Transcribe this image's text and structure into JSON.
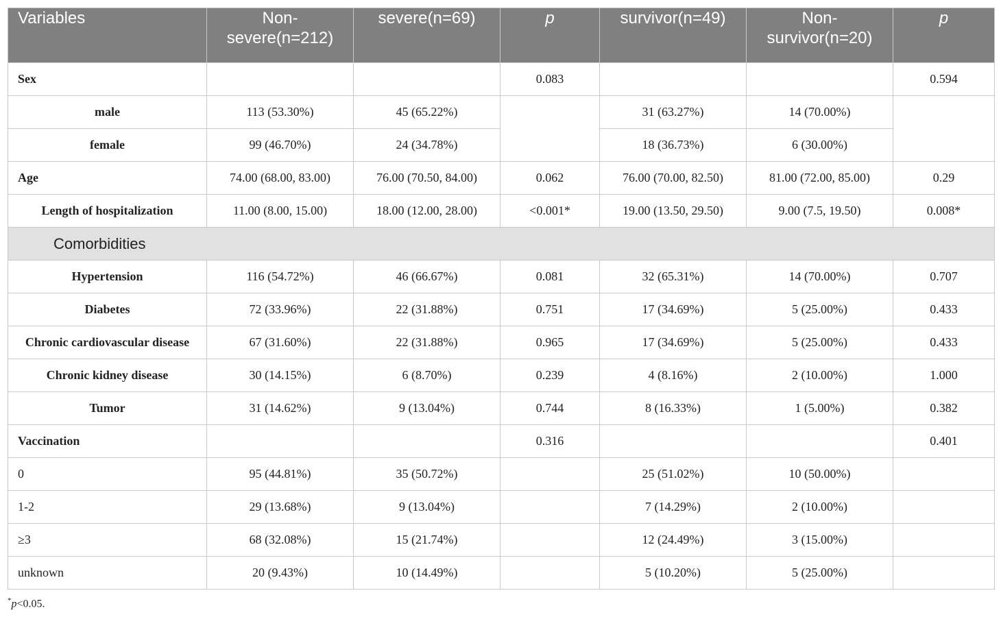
{
  "header": [
    "Variables",
    "Non-\nsevere(n=212)",
    "severe(n=69)",
    "p",
    "survivor(n=49)",
    "Non-\nsurvivor(n=20)",
    "p"
  ],
  "rows": {
    "sex": {
      "label": "Sex",
      "p1": "0.083",
      "p2": "0.594"
    },
    "male": {
      "label": "male",
      "c1": "113 (53.30%)",
      "c2": "45 (65.22%)",
      "c4": "31 (63.27%)",
      "c5": "14 (70.00%)"
    },
    "female": {
      "label": "female",
      "c1": "99 (46.70%)",
      "c2": "24 (34.78%)",
      "c4": "18 (36.73%)",
      "c5": "6 (30.00%)"
    },
    "age": {
      "label": "Age",
      "c1": "74.00 (68.00, 83.00)",
      "c2": "76.00 (70.50, 84.00)",
      "c3": "0.062",
      "c4": "76.00 (70.00, 82.50)",
      "c5": "81.00 (72.00, 85.00)",
      "c6": "0.29"
    },
    "los": {
      "label": "Length of hospitalization",
      "c1": "11.00 (8.00, 15.00)",
      "c2": "18.00 (12.00, 28.00)",
      "c3": "<0.001*",
      "c4": "19.00 (13.50, 29.50)",
      "c5": "9.00 (7.5, 19.50)",
      "c6": "0.008*"
    },
    "comorbidities": {
      "label": "Comorbidities"
    },
    "hypertension": {
      "label": "Hypertension",
      "c1": "116 (54.72%)",
      "c2": "46 (66.67%)",
      "c3": "0.081",
      "c4": "32 (65.31%)",
      "c5": "14 (70.00%)",
      "c6": "0.707"
    },
    "diabetes": {
      "label": "Diabetes",
      "c1": "72 (33.96%)",
      "c2": "22 (31.88%)",
      "c3": "0.751",
      "c4": "17 (34.69%)",
      "c5": "5 (25.00%)",
      "c6": "0.433"
    },
    "ccd": {
      "label": "Chronic cardiovascular disease",
      "c1": "67 (31.60%)",
      "c2": "22 (31.88%)",
      "c3": "0.965",
      "c4": "17 (34.69%)",
      "c5": "5 (25.00%)",
      "c6": "0.433"
    },
    "ckd": {
      "label": "Chronic kidney disease",
      "c1": "30 (14.15%)",
      "c2": "6 (8.70%)",
      "c3": "0.239",
      "c4": "4 (8.16%)",
      "c5": "2 (10.00%)",
      "c6": "1.000"
    },
    "tumor": {
      "label": "Tumor",
      "c1": "31 (14.62%)",
      "c2": "9 (13.04%)",
      "c3": "0.744",
      "c4": "8 (16.33%)",
      "c5": "1 (5.00%)",
      "c6": "0.382"
    },
    "vaccination": {
      "label": "Vaccination",
      "p1": "0.316",
      "p2": "0.401"
    },
    "v0": {
      "label": "0",
      "c1": "95 (44.81%)",
      "c2": "35 (50.72%)",
      "c4": "25 (51.02%)",
      "c5": "10 (50.00%)"
    },
    "v12": {
      "label": "1-2",
      "c1": "29 (13.68%)",
      "c2": "9 (13.04%)",
      "c4": "7 (14.29%)",
      "c5": "2 (10.00%)"
    },
    "v3": {
      "label": "≥3",
      "c1": "68 (32.08%)",
      "c2": "15 (21.74%)",
      "c4": "12 (24.49%)",
      "c5": "3 (15.00%)"
    },
    "vu": {
      "label": "unknown",
      "c1": "20 (9.43%)",
      "c2": "10 (14.49%)",
      "c4": "5 (10.20%)",
      "c5": "5 (25.00%)"
    }
  },
  "footnote": {
    "sup": "*",
    "p": "p",
    "rest": "<0.05."
  }
}
